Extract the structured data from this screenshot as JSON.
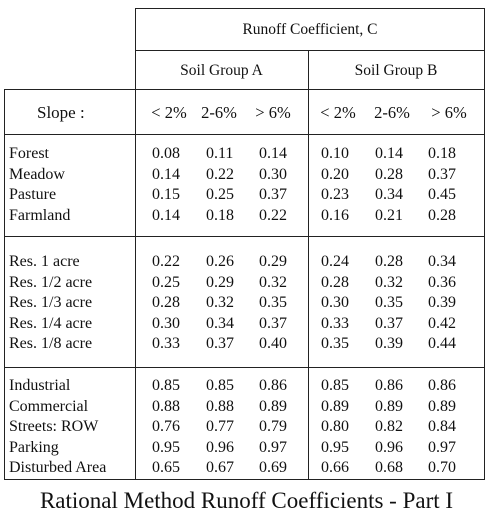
{
  "header": {
    "title": "Runoff Coefficient, C",
    "group_a": "Soil Group A",
    "group_b": "Soil Group B",
    "slope_label": "Slope :",
    "slopes": [
      "< 2%",
      "2-6%",
      "> 6%",
      "< 2%",
      "2-6%",
      "> 6%"
    ]
  },
  "sections": [
    {
      "rows": [
        {
          "label": "Forest",
          "values": [
            "0.08",
            "0.11",
            "0.14",
            "0.10",
            "0.14",
            "0.18"
          ]
        },
        {
          "label": "Meadow",
          "values": [
            "0.14",
            "0.22",
            "0.30",
            "0.20",
            "0.28",
            "0.37"
          ]
        },
        {
          "label": "Pasture",
          "values": [
            "0.15",
            "0.25",
            "0.37",
            "0.23",
            "0.34",
            "0.45"
          ]
        },
        {
          "label": "Farmland",
          "values": [
            "0.14",
            "0.18",
            "0.22",
            "0.16",
            "0.21",
            "0.28"
          ]
        }
      ]
    },
    {
      "rows": [
        {
          "label": "Res. 1 acre",
          "values": [
            "0.22",
            "0.26",
            "0.29",
            "0.24",
            "0.28",
            "0.34"
          ]
        },
        {
          "label": "Res. 1/2 acre",
          "values": [
            "0.25",
            "0.29",
            "0.32",
            "0.28",
            "0.32",
            "0.36"
          ]
        },
        {
          "label": "Res. 1/3 acre",
          "values": [
            "0.28",
            "0.32",
            "0.35",
            "0.30",
            "0.35",
            "0.39"
          ]
        },
        {
          "label": "Res. 1/4 acre",
          "values": [
            "0.30",
            "0.34",
            "0.37",
            "0.33",
            "0.37",
            "0.42"
          ]
        },
        {
          "label": "Res. 1/8 acre",
          "values": [
            "0.33",
            "0.37",
            "0.40",
            "0.35",
            "0.39",
            "0.44"
          ]
        }
      ]
    },
    {
      "rows": [
        {
          "label": "Industrial",
          "values": [
            "0.85",
            "0.85",
            "0.86",
            "0.85",
            "0.86",
            "0.86"
          ]
        },
        {
          "label": "Commercial",
          "values": [
            "0.88",
            "0.88",
            "0.89",
            "0.89",
            "0.89",
            "0.89"
          ]
        },
        {
          "label": "Streets: ROW",
          "values": [
            "0.76",
            "0.77",
            "0.79",
            "0.80",
            "0.82",
            "0.84"
          ]
        },
        {
          "label": "Parking",
          "values": [
            "0.95",
            "0.96",
            "0.97",
            "0.95",
            "0.96",
            "0.97"
          ]
        },
        {
          "label": "Disturbed Area",
          "values": [
            "0.65",
            "0.67",
            "0.69",
            "0.66",
            "0.68",
            "0.70"
          ]
        }
      ]
    }
  ],
  "caption": "Rational Method Runoff Coefficients - Part I"
}
